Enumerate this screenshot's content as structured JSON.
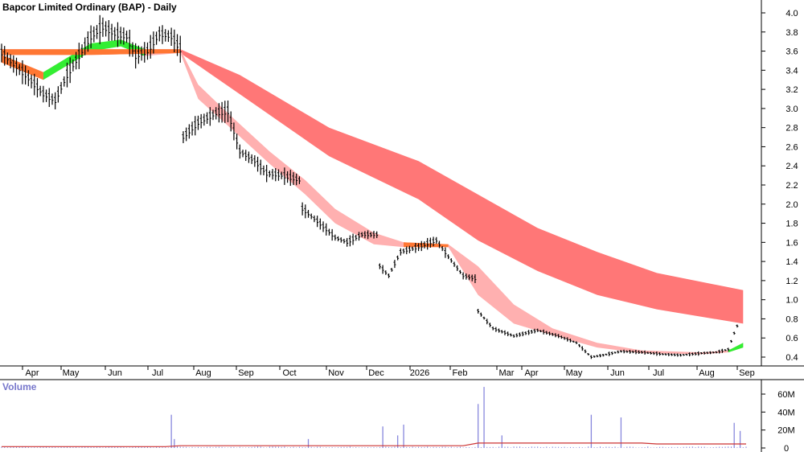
{
  "chart_data": [
    {
      "type": "candlestick",
      "title": "Bapcor Limited Ordinary (BAP) - Daily",
      "month_labels": [
        "Apr",
        "May",
        "Jun",
        "Jul",
        "Aug",
        "Sep",
        "Oct",
        "Nov",
        "Dec",
        "2026",
        "Feb",
        "Mar",
        "Apr",
        "May",
        "Jun",
        "Jul",
        "Aug",
        "Sep"
      ],
      "y_ticks": [
        "4.0",
        "3.8",
        "3.6",
        "3.4",
        "3.2",
        "3.0",
        "2.8",
        "2.6",
        "2.4",
        "2.2",
        "2.0",
        "1.8",
        "1.6",
        "1.4",
        "1.2",
        "1.0",
        "0.8",
        "0.6",
        "0.4"
      ],
      "ylim": [
        0.2,
        4.1
      ],
      "series": [
        {
          "x": 0,
          "y": 3.58
        },
        {
          "x": 8,
          "y": 3.35
        },
        {
          "x": 14,
          "y": 3.15
        },
        {
          "x": 18,
          "y": 3.08
        },
        {
          "x": 22,
          "y": 3.35
        },
        {
          "x": 26,
          "y": 3.55
        },
        {
          "x": 30,
          "y": 3.75
        },
        {
          "x": 34,
          "y": 3.85
        },
        {
          "x": 38,
          "y": 3.78
        },
        {
          "x": 42,
          "y": 3.75
        },
        {
          "x": 45,
          "y": 3.55
        },
        {
          "x": 49,
          "y": 3.6
        },
        {
          "x": 53,
          "y": 3.78
        },
        {
          "x": 57,
          "y": 3.75
        },
        {
          "x": 60,
          "y": 3.62
        },
        {
          "x": 61,
          "y": 2.7
        },
        {
          "x": 66,
          "y": 2.85
        },
        {
          "x": 72,
          "y": 2.95
        },
        {
          "x": 76,
          "y": 2.97
        },
        {
          "x": 80,
          "y": 2.55
        },
        {
          "x": 85,
          "y": 2.45
        },
        {
          "x": 89,
          "y": 2.32
        },
        {
          "x": 94,
          "y": 2.3
        },
        {
          "x": 100,
          "y": 2.25
        },
        {
          "x": 101,
          "y": 1.95
        },
        {
          "x": 106,
          "y": 1.82
        },
        {
          "x": 112,
          "y": 1.65
        },
        {
          "x": 116,
          "y": 1.6
        },
        {
          "x": 121,
          "y": 1.68
        },
        {
          "x": 126,
          "y": 1.68
        },
        {
          "x": 127,
          "y": 1.35
        },
        {
          "x": 130,
          "y": 1.25
        },
        {
          "x": 134,
          "y": 1.5
        },
        {
          "x": 140,
          "y": 1.55
        },
        {
          "x": 146,
          "y": 1.62
        },
        {
          "x": 150,
          "y": 1.45
        },
        {
          "x": 155,
          "y": 1.25
        },
        {
          "x": 159,
          "y": 1.22
        },
        {
          "x": 160,
          "y": 0.88
        },
        {
          "x": 165,
          "y": 0.7
        },
        {
          "x": 172,
          "y": 0.62
        },
        {
          "x": 180,
          "y": 0.68
        },
        {
          "x": 187,
          "y": 0.62
        },
        {
          "x": 193,
          "y": 0.55
        },
        {
          "x": 198,
          "y": 0.4
        },
        {
          "x": 202,
          "y": 0.42
        },
        {
          "x": 208,
          "y": 0.46
        },
        {
          "x": 215,
          "y": 0.45
        },
        {
          "x": 222,
          "y": 0.43
        },
        {
          "x": 228,
          "y": 0.42
        },
        {
          "x": 235,
          "y": 0.44
        },
        {
          "x": 240,
          "y": 0.45
        },
        {
          "x": 244,
          "y": 0.48
        },
        {
          "x": 246,
          "y": 0.65
        },
        {
          "x": 248,
          "y": 0.8
        }
      ],
      "short_band": [
        {
          "x": 0,
          "top": 3.56,
          "bot": 3.48
        },
        {
          "x": 14,
          "top": 3.38,
          "bot": 3.3
        },
        {
          "x": 30,
          "top": 3.68,
          "bot": 3.6
        },
        {
          "x": 40,
          "top": 3.72,
          "bot": 3.65
        },
        {
          "x": 48,
          "top": 3.62,
          "bot": 3.55
        },
        {
          "x": 60,
          "top": 3.62,
          "bot": 3.58
        },
        {
          "x": 66,
          "top": 3.25,
          "bot": 3.1
        },
        {
          "x": 76,
          "top": 2.95,
          "bot": 2.82
        },
        {
          "x": 90,
          "top": 2.55,
          "bot": 2.42
        },
        {
          "x": 102,
          "top": 2.25,
          "bot": 2.1
        },
        {
          "x": 112,
          "top": 1.95,
          "bot": 1.8
        },
        {
          "x": 125,
          "top": 1.7,
          "bot": 1.58
        },
        {
          "x": 135,
          "top": 1.6,
          "bot": 1.55
        },
        {
          "x": 150,
          "top": 1.58,
          "bot": 1.55
        },
        {
          "x": 160,
          "top": 1.35,
          "bot": 1.05
        },
        {
          "x": 172,
          "top": 0.95,
          "bot": 0.75
        },
        {
          "x": 185,
          "top": 0.7,
          "bot": 0.63
        },
        {
          "x": 200,
          "top": 0.55,
          "bot": 0.5
        },
        {
          "x": 215,
          "top": 0.47,
          "bot": 0.44
        },
        {
          "x": 235,
          "top": 0.45,
          "bot": 0.43
        },
        {
          "x": 244,
          "top": 0.47,
          "bot": 0.45
        },
        {
          "x": 249,
          "top": 0.55,
          "bot": 0.5
        }
      ],
      "long_band": [
        {
          "x": 0,
          "top": 3.62,
          "bot": 3.56
        },
        {
          "x": 30,
          "top": 3.62,
          "bot": 3.56
        },
        {
          "x": 60,
          "top": 3.62,
          "bot": 3.58
        },
        {
          "x": 80,
          "top": 3.35,
          "bot": 3.15
        },
        {
          "x": 110,
          "top": 2.8,
          "bot": 2.5
        },
        {
          "x": 140,
          "top": 2.45,
          "bot": 2.05
        },
        {
          "x": 160,
          "top": 2.1,
          "bot": 1.62
        },
        {
          "x": 180,
          "top": 1.75,
          "bot": 1.3
        },
        {
          "x": 200,
          "top": 1.5,
          "bot": 1.05
        },
        {
          "x": 220,
          "top": 1.28,
          "bot": 0.9
        },
        {
          "x": 249,
          "top": 1.1,
          "bot": 0.75
        }
      ],
      "band_colors": {
        "bull": "#33ee33",
        "neutral": "#ff7733",
        "short_bear": "#ffb0b0",
        "long_bear": "#ff7777"
      },
      "price_color": "#000000"
    },
    {
      "type": "bar",
      "title": "Volume",
      "y_ticks": [
        "60M",
        "40M",
        "20M",
        "0"
      ],
      "ylim": [
        0,
        70
      ],
      "bar_color": "#8888dd",
      "avg_color": "#cc3333",
      "baseline": 1.2,
      "spikes": [
        {
          "x": 57,
          "v": 37
        },
        {
          "x": 58,
          "v": 10
        },
        {
          "x": 103,
          "v": 10
        },
        {
          "x": 128,
          "v": 24
        },
        {
          "x": 133,
          "v": 14
        },
        {
          "x": 135,
          "v": 26
        },
        {
          "x": 160,
          "v": 49
        },
        {
          "x": 162,
          "v": 68
        },
        {
          "x": 168,
          "v": 14
        },
        {
          "x": 198,
          "v": 37
        },
        {
          "x": 208,
          "v": 34
        },
        {
          "x": 246,
          "v": 28
        },
        {
          "x": 248,
          "v": 19
        }
      ]
    }
  ]
}
